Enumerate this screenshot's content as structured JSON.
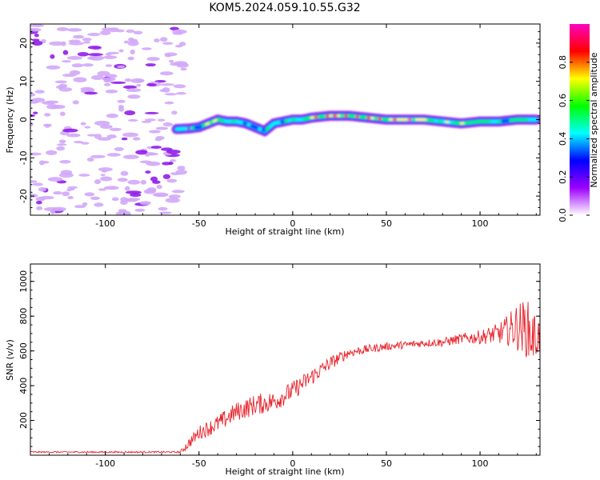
{
  "figure": {
    "title": "KOM5.2024.059.10.55.G32"
  },
  "chart_data": [
    {
      "type": "heatmap",
      "title": "KOM5.2024.059.10.55.G32",
      "xlabel": "Height of straight line (km)",
      "ylabel": "Frequency (Hz)",
      "xlim": [
        -140,
        132
      ],
      "ylim": [
        -25,
        25
      ],
      "x_ticks": [
        -100,
        -50,
        0,
        50,
        100
      ],
      "y_ticks": [
        -20,
        -10,
        0,
        10,
        20
      ],
      "colorbar": {
        "label": "Normalized spectral amplitude",
        "range": [
          0.0,
          1.0
        ],
        "ticks": [
          0.0,
          0.2,
          0.4,
          0.6,
          0.8
        ],
        "tick_labels": [
          "0.0",
          "0.2",
          "0.4",
          "0.6",
          "0.8"
        ],
        "colormap": [
          "#ffffff",
          "#9d00ff",
          "#0000ff",
          "#00ffff",
          "#00ff00",
          "#ffff00",
          "#ff0000",
          "#ff00c0"
        ]
      },
      "ridge": {
        "x": [
          -62,
          -55,
          -50,
          -45,
          -40,
          -35,
          -30,
          -25,
          -20,
          -15,
          -10,
          -5,
          0,
          5,
          10,
          20,
          30,
          40,
          50,
          60,
          70,
          80,
          90,
          100,
          110,
          120,
          130
        ],
        "frequency": [
          -2.5,
          -2.3,
          -2.0,
          -1.0,
          0.0,
          -0.5,
          -0.5,
          -1.0,
          -2.0,
          -3.0,
          -1.0,
          -0.5,
          0.0,
          0.0,
          0.5,
          1.0,
          1.0,
          0.5,
          0.0,
          0.0,
          0.0,
          -0.5,
          -1.0,
          -0.5,
          -0.5,
          0.0,
          0.0
        ],
        "amplitude": [
          0.3,
          0.35,
          0.4,
          0.5,
          0.5,
          0.45,
          0.5,
          0.4,
          0.35,
          0.45,
          0.45,
          0.5,
          0.55,
          0.5,
          0.65,
          0.75,
          0.7,
          0.65,
          0.7,
          0.8,
          0.6,
          0.55,
          0.55,
          0.5,
          0.45,
          0.5,
          0.4
        ]
      }
    },
    {
      "type": "line",
      "xlabel": "Height of straight line (km)",
      "ylabel": "SNR (v/v)",
      "xlim": [
        -140,
        132
      ],
      "ylim": [
        0,
        1100
      ],
      "x_ticks": [
        -100,
        -50,
        0,
        50,
        100
      ],
      "y_ticks": [
        200,
        400,
        600,
        800,
        1000
      ],
      "color": "#e8242c",
      "series": [
        {
          "x": [
            -140,
            -60,
            -57,
            -50,
            -40,
            -30,
            -20,
            -10,
            0,
            10,
            20,
            30,
            40,
            50,
            60,
            70,
            80,
            90,
            100,
            110,
            115,
            120,
            125,
            128,
            132
          ],
          "y": [
            18,
            18,
            50,
            130,
            180,
            250,
            290,
            310,
            370,
            450,
            530,
            590,
            610,
            625,
            635,
            645,
            650,
            670,
            680,
            700,
            720,
            740,
            730,
            680,
            690
          ],
          "noise": [
            4,
            5,
            25,
            40,
            50,
            55,
            60,
            60,
            55,
            50,
            40,
            28,
            25,
            22,
            22,
            22,
            25,
            30,
            40,
            60,
            90,
            140,
            170,
            160,
            100
          ]
        }
      ]
    }
  ]
}
